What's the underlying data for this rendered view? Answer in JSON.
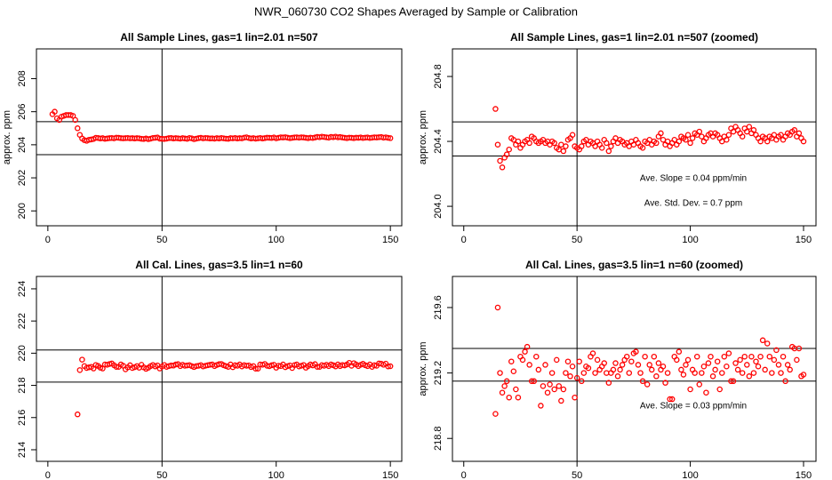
{
  "title": "NWR_060730  CO2 Shapes Averaged by Sample or Calibration",
  "chart_data": [
    {
      "type": "scatter",
      "title": "All Sample Lines, gas=1 lin=2.01 n=507",
      "ylabel": "approx. ppm",
      "color": "#ff0000",
      "xlim": [
        -5,
        155
      ],
      "ylim": [
        199.1,
        209.8
      ],
      "xticks": [
        0,
        50,
        100,
        150
      ],
      "yticks": [
        200,
        202,
        204,
        206,
        208
      ],
      "hlines": [
        205.4,
        203.4
      ],
      "vlines": [
        50
      ],
      "annotations": [],
      "x": [
        2,
        3,
        4,
        5,
        6,
        7,
        8,
        9,
        10,
        11,
        12,
        13,
        14,
        15,
        16,
        17,
        18,
        19,
        20,
        21,
        22,
        23,
        24,
        25,
        26,
        27,
        28,
        29,
        30,
        31,
        32,
        33,
        34,
        35,
        36,
        37,
        38,
        39,
        40,
        41,
        42,
        43,
        44,
        45,
        46,
        47,
        48,
        49,
        50,
        51,
        52,
        53,
        54,
        55,
        56,
        57,
        58,
        59,
        60,
        61,
        62,
        63,
        64,
        65,
        66,
        67,
        68,
        69,
        70,
        71,
        72,
        73,
        74,
        75,
        76,
        77,
        78,
        79,
        80,
        81,
        82,
        83,
        84,
        85,
        86,
        87,
        88,
        89,
        90,
        91,
        92,
        93,
        94,
        95,
        96,
        97,
        98,
        99,
        100,
        101,
        102,
        103,
        104,
        105,
        106,
        107,
        108,
        109,
        110,
        111,
        112,
        113,
        114,
        115,
        116,
        117,
        118,
        119,
        120,
        121,
        122,
        123,
        124,
        125,
        126,
        127,
        128,
        129,
        130,
        131,
        132,
        133,
        134,
        135,
        136,
        137,
        138,
        139,
        140,
        141,
        142,
        143,
        144,
        145,
        146,
        147,
        148,
        149,
        150
      ],
      "values": [
        205.85,
        206.0,
        205.6,
        205.5,
        205.7,
        205.75,
        205.8,
        205.8,
        205.8,
        205.75,
        205.5,
        205.0,
        204.6,
        204.38,
        204.28,
        204.24,
        204.3,
        204.32,
        204.35,
        204.42,
        204.41,
        204.38,
        204.4,
        204.36,
        204.38,
        204.4,
        204.41,
        204.39,
        204.43,
        204.42,
        204.4,
        204.39,
        204.4,
        204.41,
        204.39,
        204.4,
        204.38,
        204.4,
        204.39,
        204.36,
        204.35,
        204.38,
        204.34,
        204.37,
        204.41,
        204.42,
        204.44,
        204.37,
        204.36,
        204.35,
        204.37,
        204.4,
        204.41,
        204.38,
        204.4,
        204.39,
        204.37,
        204.4,
        204.38,
        204.36,
        204.41,
        204.39,
        204.34,
        204.37,
        204.4,
        204.42,
        204.39,
        204.41,
        204.4,
        204.38,
        204.39,
        204.37,
        204.4,
        204.38,
        204.41,
        204.39,
        204.37,
        204.36,
        204.4,
        204.39,
        204.41,
        204.38,
        204.4,
        204.39,
        204.43,
        204.45,
        204.41,
        204.38,
        204.4,
        204.37,
        204.39,
        204.41,
        204.38,
        204.4,
        204.43,
        204.42,
        204.41,
        204.44,
        204.39,
        204.42,
        204.45,
        204.44,
        204.46,
        204.43,
        204.4,
        204.42,
        204.44,
        204.45,
        204.43,
        204.45,
        204.44,
        204.42,
        204.4,
        204.43,
        204.41,
        204.44,
        204.48,
        204.46,
        204.49,
        204.47,
        204.45,
        204.43,
        204.48,
        204.46,
        204.49,
        204.45,
        204.47,
        204.44,
        204.42,
        204.4,
        204.43,
        204.42,
        204.4,
        204.43,
        204.42,
        204.44,
        204.41,
        204.43,
        204.44,
        204.41,
        204.43,
        204.45,
        204.44,
        204.46,
        204.47,
        204.43,
        204.45,
        204.42,
        204.4
      ]
    },
    {
      "type": "scatter",
      "title": "All Sample Lines, gas=1 lin=2.01 n=507 (zoomed)",
      "ylabel": "approx. ppm",
      "color": "#ff0000",
      "xlim": [
        -5,
        155.5
      ],
      "ylim": [
        203.88,
        204.97
      ],
      "xticks": [
        0,
        50,
        100,
        150
      ],
      "yticks": [
        {
          "value": 204,
          "label": "204.0"
        },
        204.4,
        204.8
      ],
      "hlines": [
        204.52,
        204.31
      ],
      "vlines": [
        50
      ],
      "annotations": [
        "Ave. Slope =  0.04  ppm/min",
        "Ave. Std. Dev. =  0.7  ppm"
      ],
      "x": [
        14,
        15,
        16,
        17,
        18,
        19,
        20,
        21,
        22,
        23,
        24,
        25,
        26,
        27,
        28,
        29,
        30,
        31,
        32,
        33,
        34,
        35,
        36,
        37,
        38,
        39,
        40,
        41,
        42,
        43,
        44,
        45,
        46,
        47,
        48,
        49,
        50,
        51,
        52,
        53,
        54,
        55,
        56,
        57,
        58,
        59,
        60,
        61,
        62,
        63,
        64,
        65,
        66,
        67,
        68,
        69,
        70,
        71,
        72,
        73,
        74,
        75,
        76,
        77,
        78,
        79,
        80,
        81,
        82,
        83,
        84,
        85,
        86,
        87,
        88,
        89,
        90,
        91,
        92,
        93,
        94,
        95,
        96,
        97,
        98,
        99,
        100,
        101,
        102,
        103,
        104,
        105,
        106,
        107,
        108,
        109,
        110,
        111,
        112,
        113,
        114,
        115,
        116,
        117,
        118,
        119,
        120,
        121,
        122,
        123,
        124,
        125,
        126,
        127,
        128,
        129,
        130,
        131,
        132,
        133,
        134,
        135,
        136,
        137,
        138,
        139,
        140,
        141,
        142,
        143,
        144,
        145,
        146,
        147,
        148,
        149,
        150
      ],
      "values": [
        204.6,
        204.38,
        204.28,
        204.24,
        204.3,
        204.32,
        204.35,
        204.42,
        204.41,
        204.38,
        204.4,
        204.36,
        204.38,
        204.4,
        204.41,
        204.39,
        204.43,
        204.42,
        204.4,
        204.39,
        204.4,
        204.41,
        204.39,
        204.4,
        204.38,
        204.4,
        204.39,
        204.36,
        204.35,
        204.38,
        204.34,
        204.37,
        204.41,
        204.42,
        204.44,
        204.37,
        204.36,
        204.35,
        204.37,
        204.4,
        204.41,
        204.38,
        204.4,
        204.39,
        204.37,
        204.4,
        204.38,
        204.36,
        204.41,
        204.39,
        204.34,
        204.37,
        204.4,
        204.42,
        204.39,
        204.41,
        204.4,
        204.38,
        204.39,
        204.37,
        204.4,
        204.38,
        204.41,
        204.39,
        204.37,
        204.36,
        204.4,
        204.39,
        204.41,
        204.38,
        204.4,
        204.39,
        204.43,
        204.45,
        204.41,
        204.38,
        204.4,
        204.37,
        204.39,
        204.41,
        204.38,
        204.4,
        204.43,
        204.42,
        204.41,
        204.44,
        204.39,
        204.42,
        204.45,
        204.44,
        204.46,
        204.43,
        204.4,
        204.42,
        204.44,
        204.45,
        204.43,
        204.45,
        204.44,
        204.42,
        204.4,
        204.43,
        204.41,
        204.44,
        204.48,
        204.46,
        204.49,
        204.47,
        204.45,
        204.43,
        204.48,
        204.46,
        204.49,
        204.45,
        204.47,
        204.44,
        204.42,
        204.4,
        204.43,
        204.42,
        204.4,
        204.43,
        204.42,
        204.44,
        204.41,
        204.43,
        204.44,
        204.41,
        204.43,
        204.45,
        204.44,
        204.46,
        204.47,
        204.43,
        204.45,
        204.42,
        204.4
      ]
    },
    {
      "type": "scatter",
      "title": "All Cal. Lines, gas=3.5 lin=1 n=60",
      "color": "#ff0000",
      "xlim": [
        -5,
        155
      ],
      "ylim": [
        213.28,
        224.77
      ],
      "xticks": [
        0,
        50,
        100,
        150
      ],
      "yticks": [
        214,
        216,
        218,
        220,
        222,
        224
      ],
      "hlines": [
        220.2,
        218.2
      ],
      "vlines": [
        50
      ],
      "annotations": [],
      "x": [
        13,
        14,
        15,
        16,
        17,
        18,
        19,
        20,
        21,
        22,
        23,
        24,
        25,
        26,
        27,
        28,
        29,
        30,
        31,
        32,
        33,
        34,
        35,
        36,
        37,
        38,
        39,
        40,
        41,
        42,
        43,
        44,
        45,
        46,
        47,
        48,
        49,
        50,
        51,
        52,
        53,
        54,
        55,
        56,
        57,
        58,
        59,
        60,
        61,
        62,
        63,
        64,
        65,
        66,
        67,
        68,
        69,
        70,
        71,
        72,
        73,
        74,
        75,
        76,
        77,
        78,
        79,
        80,
        81,
        82,
        83,
        84,
        85,
        86,
        87,
        88,
        89,
        90,
        91,
        92,
        93,
        94,
        95,
        96,
        97,
        98,
        99,
        100,
        101,
        102,
        103,
        104,
        105,
        106,
        107,
        108,
        109,
        110,
        111,
        112,
        113,
        114,
        115,
        116,
        117,
        118,
        119,
        120,
        121,
        122,
        123,
        124,
        125,
        126,
        127,
        128,
        129,
        130,
        131,
        132,
        133,
        134,
        135,
        136,
        137,
        138,
        139,
        140,
        141,
        142,
        143,
        144,
        145,
        146,
        147,
        148,
        149,
        150
      ],
      "values": [
        216.2,
        218.95,
        219.6,
        219.2,
        219.08,
        219.12,
        219.15,
        219.05,
        219.27,
        219.21,
        219.1,
        219.05,
        219.3,
        219.28,
        219.33,
        219.36,
        219.25,
        219.15,
        219.15,
        219.3,
        219.22,
        219.0,
        219.12,
        219.25,
        219.08,
        219.13,
        219.2,
        219.1,
        219.28,
        219.12,
        219.03,
        219.1,
        219.2,
        219.27,
        219.18,
        219.24,
        219.05,
        219.17,
        219.27,
        219.15,
        219.2,
        219.24,
        219.23,
        219.3,
        219.32,
        219.2,
        219.28,
        219.22,
        219.24,
        219.26,
        219.2,
        219.14,
        219.2,
        219.22,
        219.26,
        219.18,
        219.22,
        219.25,
        219.28,
        219.3,
        219.2,
        219.27,
        219.32,
        219.33,
        219.25,
        219.2,
        219.15,
        219.3,
        219.13,
        219.25,
        219.22,
        219.3,
        219.18,
        219.26,
        219.22,
        219.24,
        219.14,
        219.2,
        219.04,
        219.04,
        219.3,
        219.28,
        219.33,
        219.22,
        219.19,
        219.25,
        219.28,
        219.1,
        219.22,
        219.2,
        219.3,
        219.13,
        219.2,
        219.24,
        219.08,
        219.26,
        219.3,
        219.18,
        219.22,
        219.27,
        219.1,
        219.2,
        219.3,
        219.24,
        219.32,
        219.15,
        219.15,
        219.26,
        219.22,
        219.28,
        219.2,
        219.3,
        219.25,
        219.18,
        219.3,
        219.2,
        219.27,
        219.24,
        219.3,
        219.4,
        219.22,
        219.38,
        219.3,
        219.2,
        219.28,
        219.34,
        219.25,
        219.2,
        219.3,
        219.15,
        219.25,
        219.22,
        219.36,
        219.35,
        219.28,
        219.35,
        219.18,
        219.19
      ]
    },
    {
      "type": "scatter",
      "title": "All Cal. Lines, gas=3.5 lin=1 n=60 (zoomed)",
      "ylabel": "approx. ppm",
      "color": "#ff0000",
      "xlim": [
        -5,
        155.5
      ],
      "ylim": [
        218.66,
        219.79
      ],
      "xticks": [
        0,
        50,
        100,
        150
      ],
      "yticks": [
        218.8,
        219.2,
        219.6
      ],
      "hlines": [
        219.35,
        219.15
      ],
      "vlines": [
        50
      ],
      "annotations": [
        "Ave. Slope =  0.03  ppm/min"
      ],
      "x": [
        14,
        15,
        16,
        17,
        18,
        19,
        20,
        21,
        22,
        23,
        24,
        25,
        26,
        27,
        28,
        29,
        30,
        31,
        32,
        33,
        34,
        35,
        36,
        37,
        38,
        39,
        40,
        41,
        42,
        43,
        44,
        45,
        46,
        47,
        48,
        49,
        50,
        51,
        52,
        53,
        54,
        55,
        56,
        57,
        58,
        59,
        60,
        61,
        62,
        63,
        64,
        65,
        66,
        67,
        68,
        69,
        70,
        71,
        72,
        73,
        74,
        75,
        76,
        77,
        78,
        79,
        80,
        81,
        82,
        83,
        84,
        85,
        86,
        87,
        88,
        89,
        90,
        91,
        92,
        93,
        94,
        95,
        96,
        97,
        98,
        99,
        100,
        101,
        102,
        103,
        104,
        105,
        106,
        107,
        108,
        109,
        110,
        111,
        112,
        113,
        114,
        115,
        116,
        117,
        118,
        119,
        120,
        121,
        122,
        123,
        124,
        125,
        126,
        127,
        128,
        129,
        130,
        131,
        132,
        133,
        134,
        135,
        136,
        137,
        138,
        139,
        140,
        141,
        142,
        143,
        144,
        145,
        146,
        147,
        148,
        149,
        150
      ],
      "values": [
        218.95,
        219.6,
        219.2,
        219.08,
        219.12,
        219.15,
        219.05,
        219.27,
        219.21,
        219.1,
        219.05,
        219.3,
        219.28,
        219.33,
        219.36,
        219.25,
        219.15,
        219.15,
        219.3,
        219.22,
        219.0,
        219.12,
        219.25,
        219.08,
        219.13,
        219.2,
        219.1,
        219.28,
        219.12,
        219.03,
        219.1,
        219.2,
        219.27,
        219.18,
        219.24,
        219.05,
        219.17,
        219.27,
        219.15,
        219.2,
        219.24,
        219.23,
        219.3,
        219.32,
        219.2,
        219.28,
        219.22,
        219.24,
        219.26,
        219.2,
        219.14,
        219.2,
        219.22,
        219.26,
        219.18,
        219.22,
        219.25,
        219.28,
        219.3,
        219.2,
        219.27,
        219.32,
        219.33,
        219.25,
        219.2,
        219.15,
        219.3,
        219.13,
        219.25,
        219.22,
        219.3,
        219.18,
        219.26,
        219.22,
        219.24,
        219.14,
        219.2,
        219.04,
        219.04,
        219.3,
        219.28,
        219.33,
        219.22,
        219.19,
        219.25,
        219.28,
        219.1,
        219.22,
        219.2,
        219.3,
        219.13,
        219.2,
        219.24,
        219.08,
        219.26,
        219.3,
        219.18,
        219.22,
        219.27,
        219.1,
        219.2,
        219.3,
        219.24,
        219.32,
        219.15,
        219.15,
        219.26,
        219.22,
        219.28,
        219.2,
        219.3,
        219.25,
        219.18,
        219.3,
        219.2,
        219.27,
        219.24,
        219.3,
        219.4,
        219.22,
        219.38,
        219.3,
        219.2,
        219.28,
        219.34,
        219.25,
        219.2,
        219.3,
        219.15,
        219.25,
        219.22,
        219.36,
        219.35,
        219.28,
        219.35,
        219.18,
        219.19
      ]
    }
  ]
}
